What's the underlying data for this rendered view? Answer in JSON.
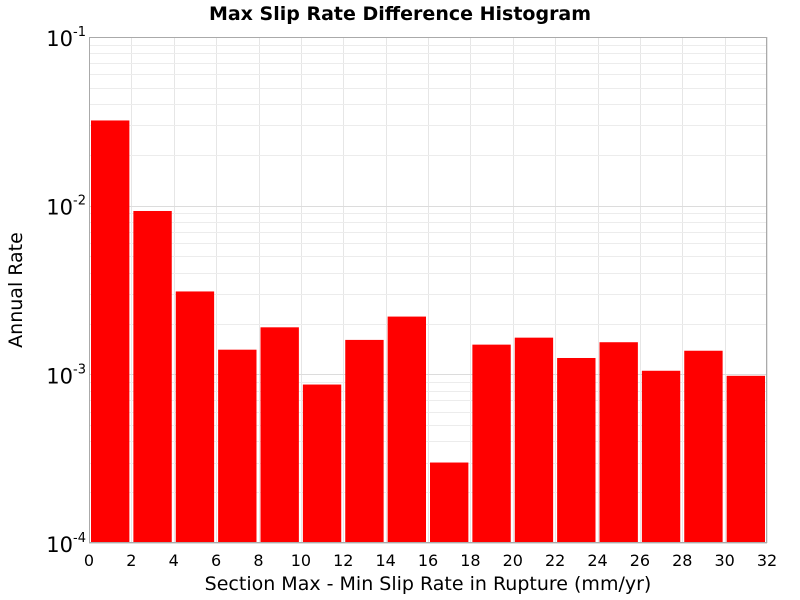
{
  "chart_data": {
    "type": "bar",
    "title": "Max Slip Rate Difference Histogram",
    "xlabel": "Section Max - Min Slip Rate in Rupture (mm/yr)",
    "ylabel": "Annual Rate",
    "xlim": [
      0,
      32
    ],
    "ylim": [
      0.0001,
      0.1
    ],
    "yscale": "log",
    "grid": true,
    "bar_color": "#ff0000",
    "bin_width": 2,
    "bins": [
      {
        "x0": 0,
        "x1": 2,
        "value": 0.032
      },
      {
        "x0": 2,
        "x1": 4,
        "value": 0.0093
      },
      {
        "x0": 4,
        "x1": 6,
        "value": 0.0031
      },
      {
        "x0": 6,
        "x1": 8,
        "value": 0.0014
      },
      {
        "x0": 8,
        "x1": 10,
        "value": 0.0019
      },
      {
        "x0": 10,
        "x1": 12,
        "value": 0.00087
      },
      {
        "x0": 12,
        "x1": 14,
        "value": 0.0016
      },
      {
        "x0": 14,
        "x1": 16,
        "value": 0.0022
      },
      {
        "x0": 16,
        "x1": 18,
        "value": 0.0003
      },
      {
        "x0": 18,
        "x1": 20,
        "value": 0.0015
      },
      {
        "x0": 20,
        "x1": 22,
        "value": 0.00165
      },
      {
        "x0": 22,
        "x1": 24,
        "value": 0.00125
      },
      {
        "x0": 24,
        "x1": 26,
        "value": 0.00155
      },
      {
        "x0": 26,
        "x1": 28,
        "value": 0.00105
      },
      {
        "x0": 28,
        "x1": 30,
        "value": 0.00138
      },
      {
        "x0": 30,
        "x1": 32,
        "value": 0.00098
      }
    ],
    "x_ticks": [
      "0",
      "2",
      "4",
      "6",
      "8",
      "10",
      "12",
      "14",
      "16",
      "18",
      "20",
      "22",
      "24",
      "26",
      "28",
      "30",
      "32"
    ],
    "y_ticks": [
      {
        "base": "10",
        "exp": "-4"
      },
      {
        "base": "10",
        "exp": "-3"
      },
      {
        "base": "10",
        "exp": "-2"
      },
      {
        "base": "10",
        "exp": "-1"
      }
    ]
  }
}
